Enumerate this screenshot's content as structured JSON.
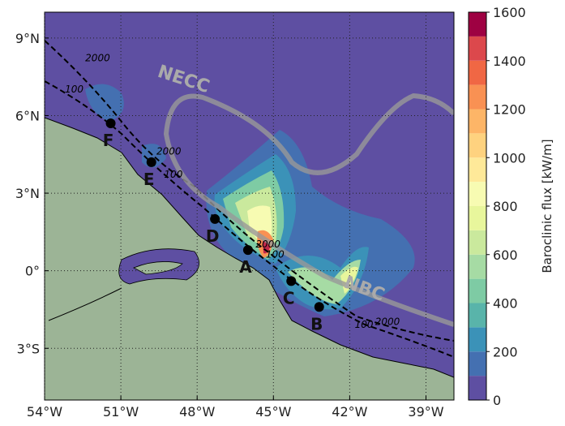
{
  "map": {
    "xlim": [
      -54,
      -37.9
    ],
    "ylim": [
      -5,
      10
    ],
    "xticks": [
      {
        "value": -54,
        "label": "54°W"
      },
      {
        "value": -51,
        "label": "51°W"
      },
      {
        "value": -48,
        "label": "48°W"
      },
      {
        "value": -45,
        "label": "45°W"
      },
      {
        "value": -42,
        "label": "42°W"
      },
      {
        "value": -39,
        "label": "39°W"
      }
    ],
    "yticks": [
      {
        "value": 9,
        "label": "9°N"
      },
      {
        "value": 6,
        "label": "6°N"
      },
      {
        "value": 3,
        "label": "3°N"
      },
      {
        "value": 0,
        "label": "0°"
      },
      {
        "value": -3,
        "label": "3°S"
      }
    ],
    "grid": true,
    "stations": [
      {
        "name": "F",
        "lon": -51.4,
        "lat": 5.7
      },
      {
        "name": "E",
        "lon": -49.8,
        "lat": 4.2
      },
      {
        "name": "D",
        "lon": -47.3,
        "lat": 2.0
      },
      {
        "name": "A",
        "lon": -46.0,
        "lat": 0.8
      },
      {
        "name": "C",
        "lon": -44.3,
        "lat": -0.4
      },
      {
        "name": "B",
        "lon": -43.2,
        "lat": -1.4
      }
    ],
    "currents": [
      {
        "name": "NECC",
        "lon": -48.6,
        "lat": 7.2
      },
      {
        "name": "NBC",
        "lon": -41.5,
        "lat": -0.9
      }
    ],
    "contour_labels": [
      {
        "text": "2000",
        "lon": -52.4,
        "lat": 8.1
      },
      {
        "text": "100",
        "lon": -53.2,
        "lat": 6.9
      },
      {
        "text": "2000",
        "lon": -49.6,
        "lat": 4.5
      },
      {
        "text": "100",
        "lon": -49.3,
        "lat": 3.6
      },
      {
        "text": "2000",
        "lon": -45.7,
        "lat": 0.9
      },
      {
        "text": "100",
        "lon": -45.3,
        "lat": 0.5
      },
      {
        "text": "2000",
        "lon": -41.0,
        "lat": -2.1
      },
      {
        "text": "100",
        "lon": -41.8,
        "lat": -2.2
      }
    ]
  },
  "colorbar": {
    "label": "Baroclinic flux [kW/m]",
    "lim": [
      0,
      1600
    ],
    "ticks": [
      0,
      200,
      400,
      600,
      800,
      1000,
      1200,
      1400,
      1600
    ],
    "levels": [
      0,
      100,
      200,
      300,
      400,
      500,
      600,
      700,
      800,
      900,
      1000,
      1100,
      1200,
      1300,
      1400,
      1500
    ],
    "colors": [
      "#5e4fa2",
      "#4470b1",
      "#3b92b8",
      "#59b4aa",
      "#7ecba4",
      "#a6dba4",
      "#cae99d",
      "#e8f69c",
      "#f7fbb2",
      "#fee999",
      "#fed27f",
      "#fdb567",
      "#f99153",
      "#f06744",
      "#dc484c",
      "#9e0142"
    ]
  }
}
